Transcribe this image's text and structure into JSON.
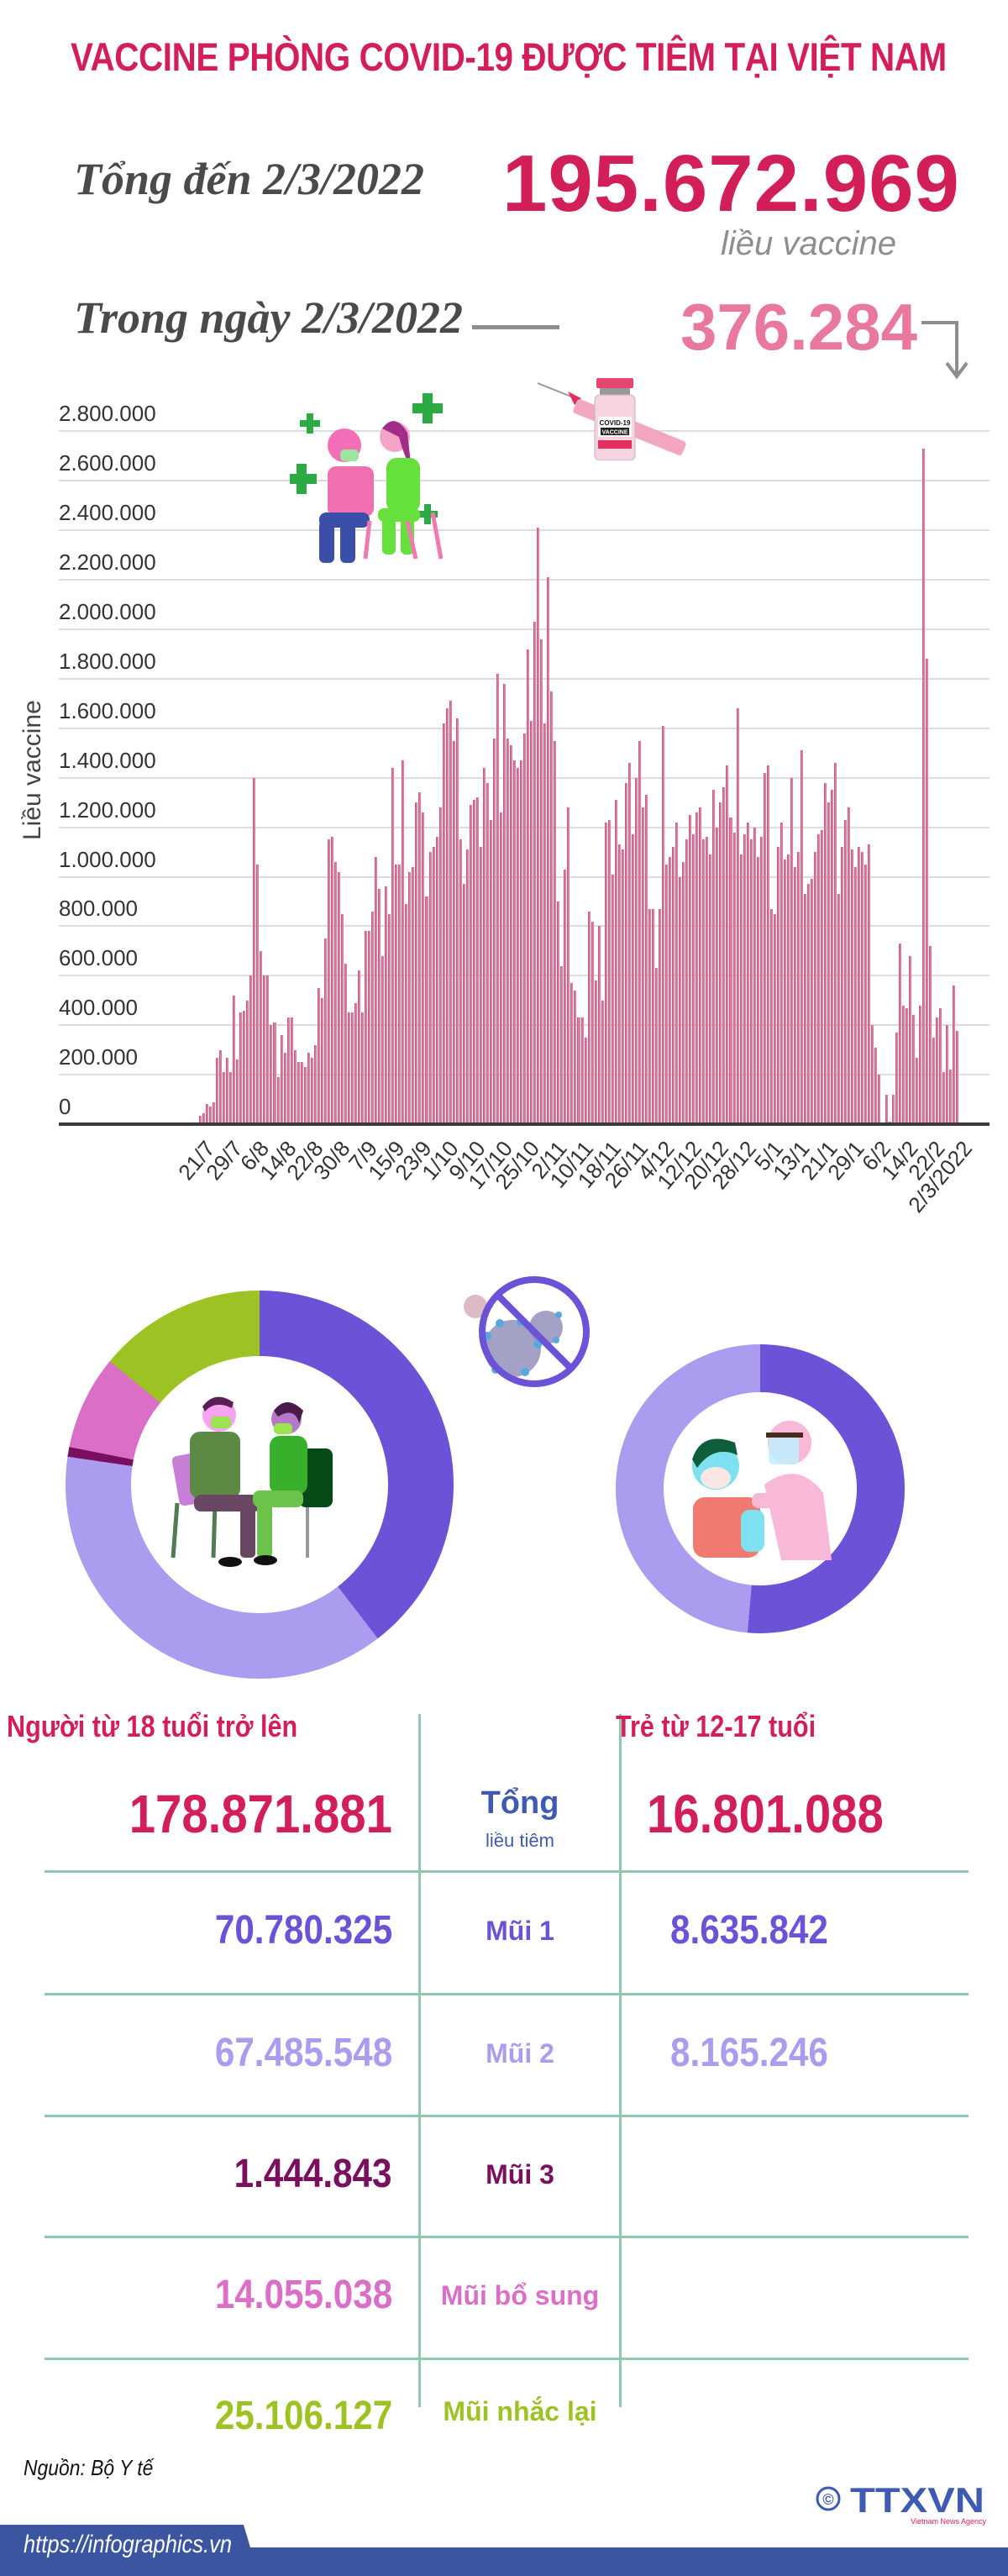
{
  "header": {
    "title": "VACCINE PHÒNG COVID-19 ĐƯỢC TIÊM TẠI VIỆT NAM",
    "total_label": "Tổng đến 2/3/2022",
    "total_value": "195.672.969",
    "total_unit": "liều vaccine",
    "day_label": "Trong ngày 2/3/2022",
    "day_value": "376.284",
    "day_trend_icon": "arrow-down-icon"
  },
  "colors": {
    "accent": "#d21f58",
    "day_value": "#e8789d",
    "bar": "#e07c9f",
    "dose1": "#6b52d6",
    "dose2": "#ab9cf0",
    "dose3": "#7a0f5e",
    "additional": "#db6fc8",
    "booster": "#9dc224",
    "total_label": "#3f5ab2",
    "table_lines": "#8ec9ae"
  },
  "chart_data": [
    {
      "type": "bar",
      "title": "",
      "xlabel": "",
      "ylabel": "Liều vaccine",
      "ylim": [
        0,
        2800000
      ],
      "grid": true,
      "legend": null,
      "yticks": [
        "0",
        "200.000",
        "400.000",
        "600.000",
        "800.000",
        "1.000.000",
        "1.200.000",
        "1.400.000",
        "1.600.000",
        "1.800.000",
        "2.000.000",
        "2.200.000",
        "2.400.000",
        "2.600.000",
        "2.800.000"
      ],
      "xtick_labels": [
        "21/7",
        "29/7",
        "6/8",
        "14/8",
        "22/8",
        "30/8",
        "7/9",
        "15/9",
        "23/9",
        "1/10",
        "9/10",
        "17/10",
        "25/10",
        "2/11",
        "10/11",
        "18/11",
        "26/11",
        "4/12",
        "12/12",
        "20/12",
        "28/12",
        "5/1",
        "13/1",
        "21/1",
        "29/1",
        "6/2",
        "14/2",
        "22/2",
        "2/3/2022"
      ],
      "x_start": "21/7/2021",
      "x_end": "2/3/2022",
      "unit_note": "values in thousands of doses, estimated from bar heights",
      "values_thousands": [
        35,
        45,
        60,
        80,
        70,
        90,
        120,
        270,
        300,
        210,
        410,
        270,
        210,
        520,
        410,
        260,
        450,
        460,
        350,
        500,
        600,
        1400,
        750,
        1050,
        700,
        600,
        510,
        600,
        400,
        410,
        1470,
        190,
        360,
        290,
        270,
        430,
        430,
        290,
        300,
        250,
        250,
        240,
        230,
        290,
        270,
        210,
        320,
        550,
        510,
        740,
        750,
        1150,
        1160,
        1000,
        1060,
        1020,
        850,
        700,
        650,
        450,
        450,
        440,
        490,
        620,
        450,
        600,
        780,
        780,
        860,
        870,
        1080,
        950,
        680,
        740,
        960,
        850,
        1440,
        1130,
        1050,
        1050,
        1470,
        1280,
        890,
        1020,
        1040,
        1000,
        1300,
        1340,
        1260,
        1300,
        920,
        1100,
        1120,
        1070,
        1160,
        1280,
        1620,
        1750,
        1680,
        1710,
        1550,
        1650,
        1640,
        1150,
        970,
        1100,
        1110,
        1290,
        1310,
        1500,
        1320,
        1120,
        1190,
        1440,
        1380,
        1230,
        1280,
        1560,
        1820,
        1260,
        1080,
        1780,
        1560,
        1530,
        1350,
        1470,
        1440,
        1470,
        1530,
        1580,
        1920,
        1630,
        1940,
        2030,
        2410,
        1960,
        1450,
        1620,
        2210,
        1750,
        1590,
        1550,
        900,
        640,
        370,
        1030,
        1280,
        570,
        580,
        540,
        430,
        430,
        500,
        350,
        860,
        820,
        300,
        580,
        800,
        500,
        470,
        1220,
        1230,
        1010,
        740,
        1310,
        1130,
        1110,
        1120,
        1380,
        1460,
        1170,
        1180,
        1400,
        1550,
        1280,
        1890,
        1330,
        870,
        870,
        530,
        630,
        870,
        1610,
        1020,
        1050,
        1080,
        1160,
        1120,
        1220,
        1000,
        1010,
        1060,
        1150,
        1250,
        1430,
        1170,
        1260,
        1280,
        1080,
        1150,
        1160,
        1090,
        1300,
        1350,
        1200,
        1300,
        1380,
        1360,
        1450,
        1240,
        1150,
        1180,
        1680,
        1090,
        1220,
        1170,
        1220,
        1150,
        1280,
        1200,
        1080,
        1160,
        1280,
        1420,
        1450,
        870,
        1000,
        850,
        1120,
        1220,
        1080,
        1070,
        1090,
        1400,
        1300,
        1040,
        1100,
        1510,
        1320,
        930,
        970,
        990,
        1030,
        1100,
        1170,
        1190,
        1260,
        1380,
        1300,
        1350,
        1600,
        1460,
        930,
        1120,
        1010,
        1230,
        1280,
        1110,
        1010,
        1040,
        1120,
        1250,
        1100,
        1050,
        1130,
        640,
        400,
        310,
        200,
        30,
        0,
        120,
        10,
        0,
        120,
        370,
        730,
        550,
        480,
        470,
        680,
        360,
        440,
        270,
        480,
        630,
        2730,
        1880,
        720,
        470,
        350,
        430,
        470,
        590,
        210,
        400,
        220,
        350,
        560,
        376
      ]
    },
    {
      "type": "pie",
      "title": "Người từ 18 tuổi trở lên",
      "donut": true,
      "labels": [
        "Mũi 1",
        "Mũi 2",
        "Mũi 3",
        "Mũi bổ sung",
        "Mũi nhắc lại"
      ],
      "values": [
        70780325,
        67485548,
        1444843,
        14055038,
        25106127
      ]
    },
    {
      "type": "pie",
      "title": "Trẻ từ 12-17 tuổi",
      "donut": true,
      "labels": [
        "Mũi 1",
        "Mũi 2"
      ],
      "values": [
        8635842,
        8165246
      ]
    }
  ],
  "illustrations": {
    "chart_top_left": "nurse-vaccinating-man-illustration",
    "chart_top_center": "vaccine-vial-syringe-illustration",
    "virus_prohibited": "no-virus-icon",
    "adult_donut_center": "adult-vaccination-illustration",
    "child_donut_center": "child-vaccination-illustration"
  },
  "vial_text": {
    "line1": "COVID-19",
    "line2": "VACCINE"
  },
  "table": {
    "col_adults": "Người từ 18 tuổi trở lên",
    "col_children": "Trẻ từ 12-17 tuổi",
    "rows": [
      {
        "label": "Tổng",
        "sublabel": "liều tiêm",
        "adults": "178.871.881",
        "children": "16.801.088"
      },
      {
        "label": "Mũi 1",
        "adults": "70.780.325",
        "children": "8.635.842"
      },
      {
        "label": "Mũi 2",
        "adults": "67.485.548",
        "children": "8.165.246"
      },
      {
        "label": "Mũi 3",
        "adults": "1.444.843",
        "children": ""
      },
      {
        "label": "Mũi bổ sung",
        "adults": "14.055.038",
        "children": ""
      },
      {
        "label": "Mũi nhắc lại",
        "adults": "25.106.127",
        "children": ""
      }
    ]
  },
  "footer": {
    "source": "Nguồn: Bộ Y tế",
    "url": "https://infographics.vn",
    "logo_text": "TTXVN",
    "logo_sub": "Vietnam News Agency",
    "copyright_symbol": "©"
  }
}
